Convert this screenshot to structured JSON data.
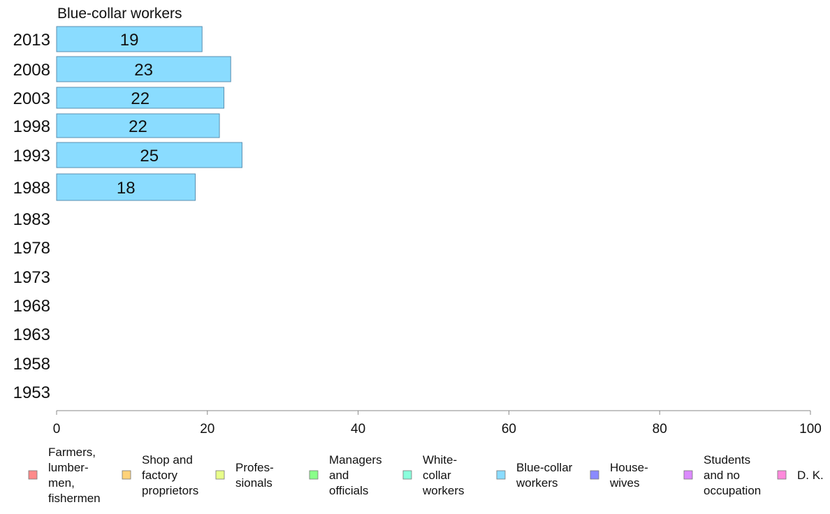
{
  "chart_data": {
    "type": "bar",
    "orientation": "horizontal",
    "title": "Blue-collar workers",
    "categories": [
      "2013",
      "2008",
      "2003",
      "1998",
      "1993",
      "1988",
      "1983",
      "1978",
      "1973",
      "1968",
      "1963",
      "1958",
      "1953"
    ],
    "series": [
      {
        "name": "Blue-collar workers",
        "color": "#8adcff",
        "values": [
          19.3,
          23.1,
          22.2,
          21.6,
          24.6,
          18.4,
          null,
          null,
          null,
          null,
          null,
          null,
          null
        ],
        "labels": [
          "19",
          "23",
          "22",
          "22",
          "25",
          "18",
          "",
          "",
          "",
          "",
          "",
          "",
          ""
        ]
      }
    ],
    "xlim": [
      0,
      100
    ],
    "xticks": [
      "0",
      "20",
      "40",
      "60",
      "80",
      "100"
    ],
    "grid": false,
    "legend_position": "bottom",
    "legend": [
      {
        "lines": [
          "Farmers,",
          "lumber-",
          "men,",
          "fishermen"
        ],
        "color": "#ff8a8a"
      },
      {
        "lines": [
          "Shop and",
          "factory",
          "proprietors"
        ],
        "color": "#ffd27a"
      },
      {
        "lines": [
          "Profes-",
          "sionals"
        ],
        "color": "#e8ff8a"
      },
      {
        "lines": [
          "Managers",
          "and",
          "officials"
        ],
        "color": "#8aff8a"
      },
      {
        "lines": [
          "White-",
          "collar",
          "workers"
        ],
        "color": "#8affdc"
      },
      {
        "lines": [
          "Blue-collar",
          "workers"
        ],
        "color": "#8adcff"
      },
      {
        "lines": [
          "House-",
          "wives"
        ],
        "color": "#8a8aff"
      },
      {
        "lines": [
          "Students",
          "and no",
          "occupation"
        ],
        "color": "#dc8aff"
      },
      {
        "lines": [
          "D. K."
        ],
        "color": "#ff8adc"
      }
    ]
  }
}
